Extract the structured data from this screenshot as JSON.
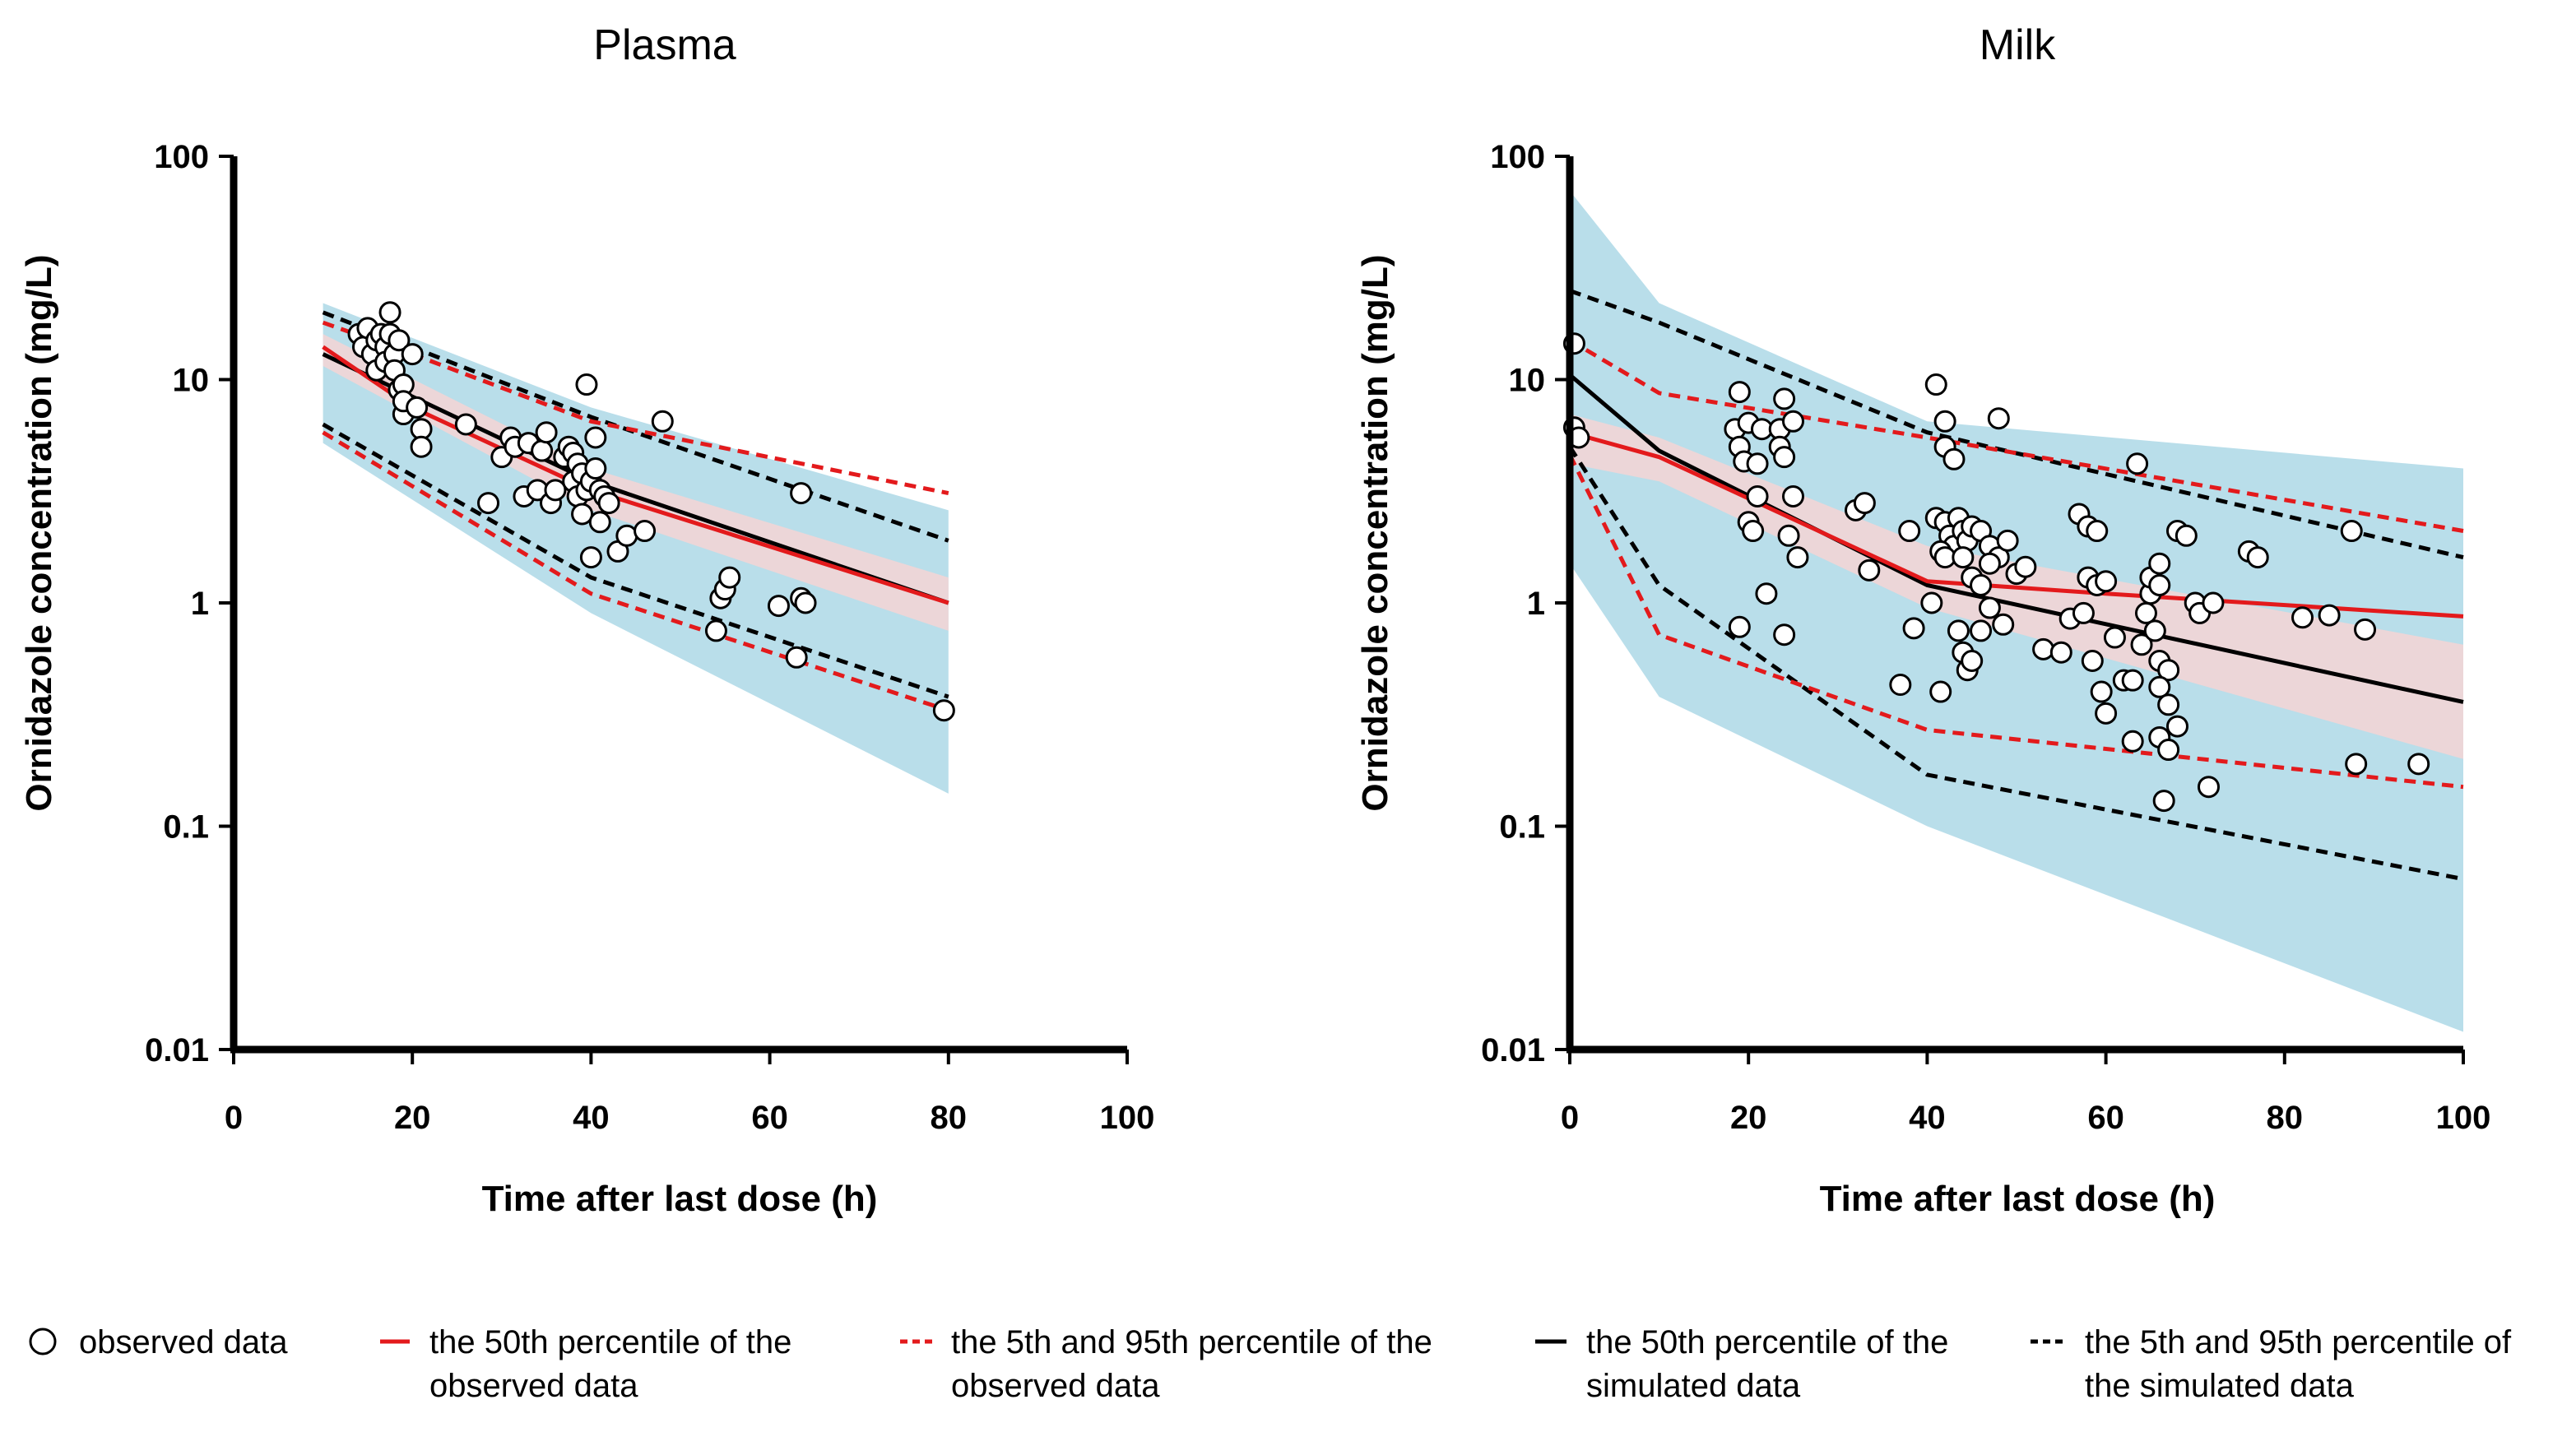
{
  "colors": {
    "sim_band": "#add8e6",
    "obs_band": "#f9d3d3",
    "observed_red": "#e31a1c",
    "simulated_black": "#000000",
    "marker_fill": "#ffffff"
  },
  "legend": [
    {
      "symbol": "circle",
      "lines": [
        "observed data"
      ]
    },
    {
      "symbol": "red-solid",
      "lines": [
        "the 50th percentile of the",
        "observed data"
      ]
    },
    {
      "symbol": "red-dashed",
      "lines": [
        "the 5th and 95th percentile of the",
        "observed data"
      ]
    },
    {
      "symbol": "black-solid",
      "lines": [
        "the 50th percentile of the",
        "simulated data"
      ]
    },
    {
      "symbol": "black-dashed",
      "lines": [
        "the 5th and 95th percentile of",
        "the simulated data"
      ]
    }
  ],
  "chart_data": [
    {
      "type": "line",
      "title": "Plasma",
      "xlabel": "Time after last dose (h)",
      "ylabel": "Ornidazole concentration (mg/L)",
      "xlim": [
        0,
        100
      ],
      "ylim": [
        0.01,
        100
      ],
      "yscale": "log",
      "xticks": [
        "0",
        "20",
        "40",
        "60",
        "80",
        "100"
      ],
      "yticks": [
        "0.01",
        "0.1",
        "1",
        "10",
        "100"
      ],
      "sim_band_outer": {
        "x": [
          10,
          40,
          80
        ],
        "upper": [
          22,
          7.5,
          2.6
        ],
        "lower": [
          5.2,
          0.9,
          0.14
        ]
      },
      "obs_band_median": {
        "x": [
          10,
          40,
          80
        ],
        "upper": [
          16,
          4.0,
          1.3
        ],
        "lower": [
          11.5,
          2.6,
          0.75
        ]
      },
      "series": [
        {
          "name": "simulated 95th percentile",
          "style": "black-dashed",
          "x": [
            10,
            40,
            80
          ],
          "y": [
            20,
            6.8,
            1.9
          ]
        },
        {
          "name": "simulated 50th percentile",
          "style": "black-solid",
          "x": [
            10,
            40,
            80
          ],
          "y": [
            13,
            3.5,
            1.0
          ]
        },
        {
          "name": "simulated 5th percentile",
          "style": "black-dashed",
          "x": [
            10,
            40,
            80
          ],
          "y": [
            6.3,
            1.3,
            0.38
          ]
        },
        {
          "name": "observed 95th percentile",
          "style": "red-dashed",
          "x": [
            10,
            20,
            40,
            80
          ],
          "y": [
            18,
            13,
            6.5,
            3.1
          ]
        },
        {
          "name": "observed 50th percentile",
          "style": "red-solid",
          "x": [
            10,
            20,
            40,
            80
          ],
          "y": [
            14,
            7.5,
            3.2,
            1.0
          ]
        },
        {
          "name": "observed 5th percentile",
          "style": "red-dashed",
          "x": [
            10,
            40,
            80
          ],
          "y": [
            5.8,
            1.1,
            0.33
          ]
        }
      ],
      "observed_points": [
        [
          14,
          16
        ],
        [
          14.5,
          14
        ],
        [
          15,
          17
        ],
        [
          15.5,
          13
        ],
        [
          16,
          15
        ],
        [
          16,
          11
        ],
        [
          16.5,
          16
        ],
        [
          17,
          14
        ],
        [
          17,
          12
        ],
        [
          17.5,
          20
        ],
        [
          17.5,
          16
        ],
        [
          18,
          13
        ],
        [
          18,
          11
        ],
        [
          18.5,
          15
        ],
        [
          18.5,
          9
        ],
        [
          19,
          9.5
        ],
        [
          19,
          7
        ],
        [
          19,
          8
        ],
        [
          20,
          13
        ],
        [
          20.5,
          7.5
        ],
        [
          21,
          6
        ],
        [
          21,
          5
        ],
        [
          26,
          6.3
        ],
        [
          28.5,
          2.8
        ],
        [
          30,
          4.5
        ],
        [
          31,
          5.5
        ],
        [
          31.5,
          5
        ],
        [
          32.5,
          3
        ],
        [
          33,
          5.2
        ],
        [
          34,
          3.2
        ],
        [
          34.5,
          4.8
        ],
        [
          35,
          5.8
        ],
        [
          35.5,
          2.8
        ],
        [
          36,
          3.2
        ],
        [
          37,
          4.5
        ],
        [
          37.5,
          5
        ],
        [
          38,
          4.7
        ],
        [
          38,
          3.5
        ],
        [
          38.5,
          4.2
        ],
        [
          38.5,
          3
        ],
        [
          39,
          3.8
        ],
        [
          39,
          2.5
        ],
        [
          39.5,
          3.2
        ],
        [
          39.5,
          9.5
        ],
        [
          40,
          1.6
        ],
        [
          40,
          3.5
        ],
        [
          40.5,
          5.5
        ],
        [
          40.5,
          4
        ],
        [
          41,
          3.2
        ],
        [
          41,
          2.3
        ],
        [
          41.5,
          3
        ],
        [
          42,
          2.8
        ],
        [
          43,
          1.7
        ],
        [
          44,
          2
        ],
        [
          46,
          2.1
        ],
        [
          48,
          6.5
        ],
        [
          54,
          0.75
        ],
        [
          54.5,
          1.05
        ],
        [
          55,
          1.15
        ],
        [
          55.5,
          1.3
        ],
        [
          61,
          0.97
        ],
        [
          63,
          0.57
        ],
        [
          63.5,
          1.05
        ],
        [
          64,
          1.0
        ],
        [
          63.5,
          3.1
        ],
        [
          79.5,
          0.33
        ]
      ]
    },
    {
      "type": "line",
      "title": "Milk",
      "xlabel": "Time after last dose (h)",
      "ylabel": "Ornidazole concentration (mg/L)",
      "xlim": [
        0,
        100
      ],
      "ylim": [
        0.01,
        100
      ],
      "yscale": "log",
      "xticks": [
        "0",
        "20",
        "40",
        "60",
        "80",
        "100"
      ],
      "yticks": [
        "0.01",
        "0.1",
        "1",
        "10",
        "100"
      ],
      "sim_band_outer": {
        "x": [
          0,
          10,
          40,
          100
        ],
        "upper": [
          70,
          22,
          6.5,
          4.0
        ],
        "lower": [
          1.5,
          0.38,
          0.1,
          0.012
        ]
      },
      "obs_band_median": {
        "x": [
          0,
          10,
          40,
          100
        ],
        "upper": [
          7,
          5.5,
          1.8,
          0.65
        ],
        "lower": [
          4.2,
          3.5,
          0.95,
          0.2
        ]
      },
      "series": [
        {
          "name": "simulated 95th percentile",
          "style": "black-dashed",
          "x": [
            0,
            10,
            40,
            100
          ],
          "y": [
            25,
            18,
            5.8,
            1.6
          ]
        },
        {
          "name": "simulated 50th percentile",
          "style": "black-solid",
          "x": [
            0,
            10,
            40,
            100
          ],
          "y": [
            10.5,
            4.8,
            1.2,
            0.36
          ]
        },
        {
          "name": "simulated 5th percentile",
          "style": "black-dashed",
          "x": [
            0,
            10,
            40,
            100
          ],
          "y": [
            5,
            1.2,
            0.17,
            0.058
          ]
        },
        {
          "name": "observed 95th percentile",
          "style": "red-dashed",
          "x": [
            0,
            10,
            40,
            100
          ],
          "y": [
            15,
            8.7,
            5.5,
            2.1
          ]
        },
        {
          "name": "observed 50th percentile",
          "style": "red-solid",
          "x": [
            0,
            10,
            40,
            60,
            100
          ],
          "y": [
            5.8,
            4.5,
            1.25,
            1.1,
            0.87
          ]
        },
        {
          "name": "observed 5th percentile",
          "style": "red-dashed",
          "x": [
            0,
            10,
            40,
            100
          ],
          "y": [
            4.6,
            0.72,
            0.27,
            0.15
          ]
        }
      ],
      "observed_points": [
        [
          0.5,
          14.5
        ],
        [
          0.5,
          6.1
        ],
        [
          1,
          5.5
        ],
        [
          19,
          8.8
        ],
        [
          18.5,
          6
        ],
        [
          19,
          5
        ],
        [
          19.5,
          4.3
        ],
        [
          20,
          6.4
        ],
        [
          21,
          4.2
        ],
        [
          21.5,
          6
        ],
        [
          21,
          3
        ],
        [
          20,
          2.3
        ],
        [
          20.5,
          2.1
        ],
        [
          22,
          1.1
        ],
        [
          19,
          0.78
        ],
        [
          24,
          8.2
        ],
        [
          23.5,
          6
        ],
        [
          23.5,
          5
        ],
        [
          24,
          4.5
        ],
        [
          25,
          6.5
        ],
        [
          25,
          3
        ],
        [
          24.5,
          2
        ],
        [
          25.5,
          1.6
        ],
        [
          24,
          0.72
        ],
        [
          32,
          2.6
        ],
        [
          33,
          2.8
        ],
        [
          33.5,
          1.4
        ],
        [
          37,
          0.43
        ],
        [
          38,
          2.1
        ],
        [
          38.5,
          0.77
        ],
        [
          41,
          9.5
        ],
        [
          42,
          6.5
        ],
        [
          42,
          5
        ],
        [
          43,
          4.4
        ],
        [
          48,
          6.7
        ],
        [
          41,
          2.4
        ],
        [
          42,
          2.3
        ],
        [
          42.5,
          2
        ],
        [
          43,
          1.8
        ],
        [
          41.5,
          1.7
        ],
        [
          42,
          1.6
        ],
        [
          43.5,
          2.4
        ],
        [
          44,
          2.1
        ],
        [
          44.5,
          1.9
        ],
        [
          45,
          2.2
        ],
        [
          46,
          2.1
        ],
        [
          47,
          1.8
        ],
        [
          48,
          1.6
        ],
        [
          49,
          1.9
        ],
        [
          44,
          1.6
        ],
        [
          45,
          1.3
        ],
        [
          46,
          1.2
        ],
        [
          47,
          1.5
        ],
        [
          50,
          1.35
        ],
        [
          51,
          1.45
        ],
        [
          40.5,
          1.0
        ],
        [
          41.5,
          0.4
        ],
        [
          43.5,
          0.75
        ],
        [
          44,
          0.6
        ],
        [
          44.5,
          0.5
        ],
        [
          45,
          0.55
        ],
        [
          46,
          0.75
        ],
        [
          47,
          0.95
        ],
        [
          48.5,
          0.8
        ],
        [
          53,
          0.62
        ],
        [
          55,
          0.6
        ],
        [
          56,
          0.85
        ],
        [
          57,
          2.5
        ],
        [
          58,
          2.2
        ],
        [
          59,
          2.1
        ],
        [
          58,
          1.3
        ],
        [
          59,
          1.2
        ],
        [
          60,
          1.25
        ],
        [
          57.5,
          0.9
        ],
        [
          58.5,
          0.55
        ],
        [
          59.5,
          0.4
        ],
        [
          60,
          0.32
        ],
        [
          61,
          0.7
        ],
        [
          62,
          0.45
        ],
        [
          63,
          0.45
        ],
        [
          63,
          0.24
        ],
        [
          64,
          0.65
        ],
        [
          64.5,
          0.9
        ],
        [
          65,
          1.1
        ],
        [
          65,
          1.3
        ],
        [
          66,
          1.5
        ],
        [
          66,
          1.2
        ],
        [
          65.5,
          0.75
        ],
        [
          66,
          0.55
        ],
        [
          67,
          0.5
        ],
        [
          66,
          0.42
        ],
        [
          67,
          0.35
        ],
        [
          68,
          0.28
        ],
        [
          66,
          0.25
        ],
        [
          67,
          0.22
        ],
        [
          66.5,
          0.13
        ],
        [
          68,
          2.1
        ],
        [
          69,
          2.0
        ],
        [
          70,
          1.0
        ],
        [
          70.5,
          0.9
        ],
        [
          71.5,
          0.15
        ],
        [
          72,
          1.0
        ],
        [
          76,
          1.7
        ],
        [
          63.5,
          4.2
        ],
        [
          77,
          1.6
        ],
        [
          82,
          0.86
        ],
        [
          85,
          0.88
        ],
        [
          87.5,
          2.1
        ],
        [
          88,
          0.19
        ],
        [
          89,
          0.76
        ],
        [
          95,
          0.19
        ]
      ]
    }
  ]
}
